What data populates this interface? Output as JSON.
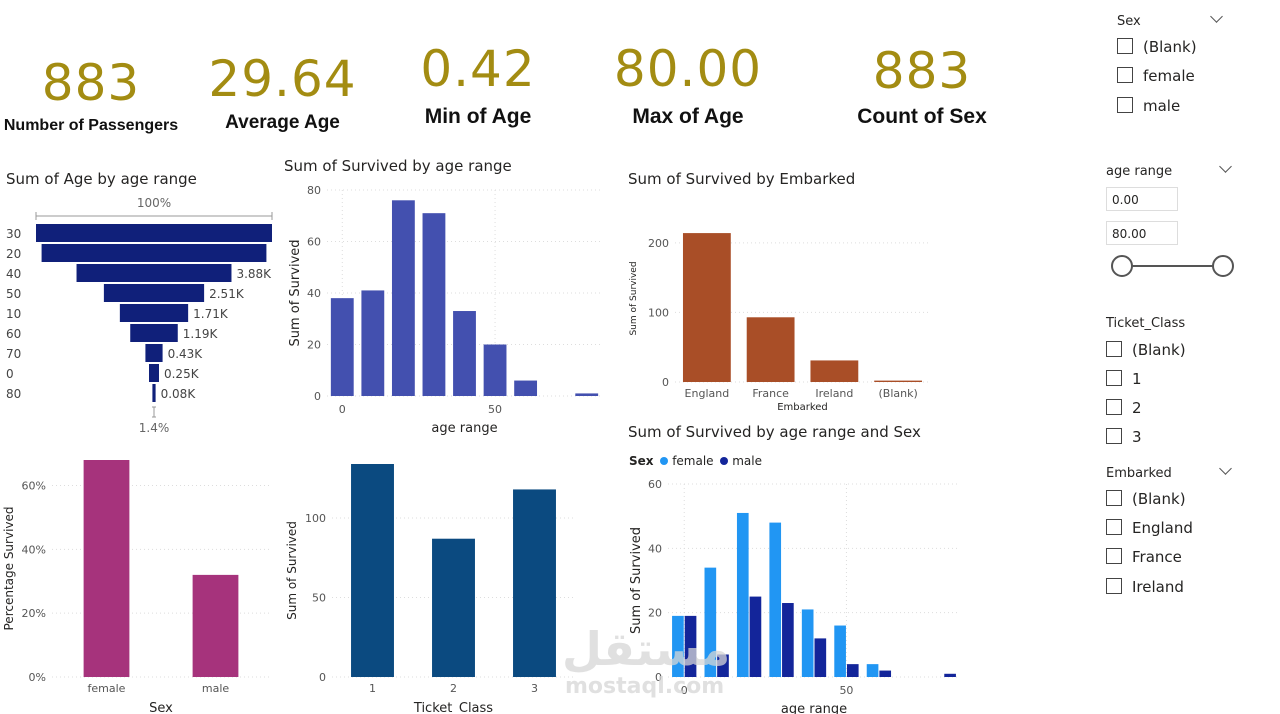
{
  "kpis": [
    {
      "value": "883",
      "label": "Number of Passengers"
    },
    {
      "value": "29.64",
      "label": "Average  Age"
    },
    {
      "value": "0.42",
      "label": "Min of Age"
    },
    {
      "value": "80.00",
      "label": "Max of Age"
    },
    {
      "value": "883",
      "label": "Count of Sex"
    }
  ],
  "slicers": {
    "sex": {
      "title": "Sex",
      "options": [
        "(Blank)",
        "female",
        "male"
      ]
    },
    "age_range": {
      "title": "age range",
      "min": "0.00",
      "max": "80.00"
    },
    "ticket_class": {
      "title": "Ticket_Class",
      "options": [
        "(Blank)",
        "1",
        "2",
        "3"
      ]
    },
    "embarked": {
      "title": "Embarked",
      "options": [
        "(Blank)",
        "England",
        "France",
        "Ireland"
      ]
    }
  },
  "watermark": {
    "text": "mostaql.com",
    "arabic": "مستقل"
  },
  "chart_data": [
    {
      "id": "funnel",
      "type": "funnel",
      "title": "Sum of Age by age range",
      "categories": [
        "30",
        "20",
        "40",
        "50",
        "10",
        "60",
        "70",
        "0",
        "80"
      ],
      "values": [
        5910,
        5630,
        3880,
        2510,
        1710,
        1190,
        430,
        250,
        80
      ],
      "data_labels": [
        "",
        "",
        "3.88K",
        "2.51K",
        "1.71K",
        "1.19K",
        "0.43K",
        "0.25K",
        "0.08K"
      ],
      "top_label": "100%",
      "bottom_label": "1.4%"
    },
    {
      "id": "survived_age",
      "type": "bar",
      "title": "Sum of Survived by age range",
      "xlabel": "age range",
      "ylabel": "Sum of Survived",
      "x": [
        0,
        10,
        20,
        30,
        40,
        50,
        60,
        80
      ],
      "values": [
        38,
        41,
        76,
        71,
        33,
        20,
        6,
        1
      ],
      "yticks": [
        0,
        20,
        40,
        60,
        80
      ],
      "xticks": [
        0,
        50
      ],
      "ylim": [
        0,
        80
      ],
      "xlim": [
        -5,
        85
      ],
      "color": "#4350af"
    },
    {
      "id": "survived_embarked",
      "type": "bar",
      "title": "Sum of Survived by Embarked",
      "xlabel": "Embarked",
      "ylabel": "Sum of Survived",
      "categories": [
        "England",
        "France",
        "Ireland",
        "(Blank)"
      ],
      "values": [
        214,
        93,
        31,
        2
      ],
      "yticks": [
        0,
        100,
        200
      ],
      "ylim": [
        0,
        240
      ],
      "color": "#a94e27"
    },
    {
      "id": "pct_sex",
      "type": "bar",
      "title": "",
      "xlabel": "Sex",
      "ylabel": "Percentage Survived",
      "categories": [
        "female",
        "male"
      ],
      "values": [
        0.68,
        0.32
      ],
      "yticks": [
        "0%",
        "20%",
        "40%",
        "60%"
      ],
      "ylim": [
        0,
        0.68
      ],
      "color": "#a6337c"
    },
    {
      "id": "survived_class",
      "type": "bar",
      "title": "",
      "xlabel": "Ticket_Class",
      "ylabel": "Sum of Survived",
      "categories": [
        "1",
        "2",
        "3"
      ],
      "values": [
        134,
        87,
        118
      ],
      "yticks": [
        0,
        50,
        100
      ],
      "ylim": [
        0,
        134
      ],
      "color": "#0b4a80"
    },
    {
      "id": "survived_age_sex",
      "type": "bar",
      "title": "Sum of Survived by age range and Sex",
      "legend_title": "Sex",
      "xlabel": "age range",
      "ylabel": "Sum of Survived",
      "x": [
        0,
        10,
        20,
        30,
        40,
        50,
        60,
        80
      ],
      "series": [
        {
          "name": "female",
          "color": "#2196f3",
          "values": [
            19,
            34,
            51,
            48,
            21,
            16,
            4,
            0
          ]
        },
        {
          "name": "male",
          "color": "#13259a",
          "values": [
            19,
            7,
            25,
            23,
            12,
            4,
            2,
            1
          ]
        }
      ],
      "yticks": [
        0,
        20,
        40,
        60
      ],
      "xticks": [
        0,
        50
      ],
      "ylim": [
        0,
        60
      ],
      "xlim": [
        -5,
        85
      ]
    }
  ]
}
